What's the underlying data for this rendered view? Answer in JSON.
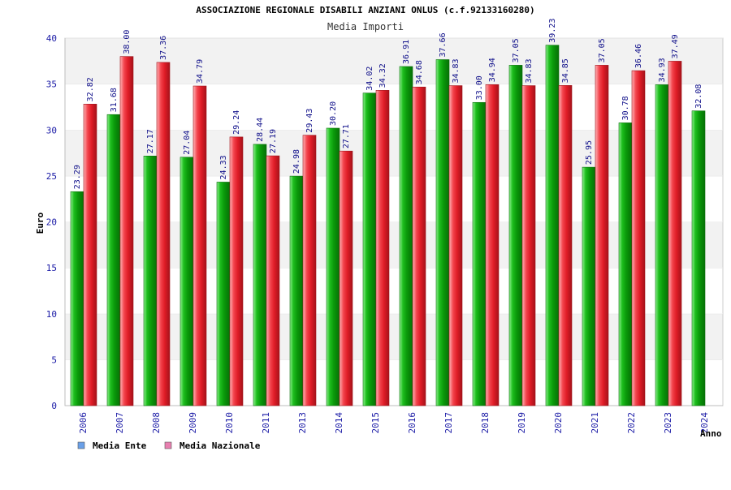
{
  "chart_data": {
    "type": "bar",
    "title": "ASSOCIAZIONE REGIONALE DISABILI ANZIANI ONLUS (c.f.92133160280)",
    "subtitle": "Media Importi",
    "ylabel": "Euro",
    "xlabel": "Anno",
    "ylim": [
      0,
      40
    ],
    "yticks": [
      0,
      5,
      10,
      15,
      20,
      25,
      30,
      35,
      40
    ],
    "grid": "horizontal-bands",
    "legend_position": "bottom-left",
    "categories": [
      "2006",
      "2007",
      "2008",
      "2009",
      "2010",
      "2011",
      "2013",
      "2014",
      "2015",
      "2016",
      "2017",
      "2018",
      "2019",
      "2020",
      "2021",
      "2022",
      "2023",
      "2024"
    ],
    "series": [
      {
        "name": "Media Ente",
        "legend_color": "#6aa0e8",
        "bar_color": "#13a813",
        "values": [
          23.29,
          31.68,
          27.17,
          27.04,
          24.33,
          28.44,
          24.98,
          30.2,
          34.02,
          36.91,
          37.66,
          33.0,
          37.05,
          39.23,
          25.95,
          30.78,
          34.93,
          32.08
        ]
      },
      {
        "name": "Media Nazionale",
        "legend_color": "#e87fb0",
        "bar_color": "#e6242e",
        "values": [
          32.82,
          38.0,
          37.36,
          34.79,
          29.24,
          27.19,
          29.43,
          27.71,
          34.32,
          34.68,
          34.83,
          34.94,
          34.83,
          34.85,
          37.05,
          36.46,
          37.49,
          null
        ]
      }
    ],
    "value_labels": {
      "Media Ente": [
        "23.29",
        "31.68",
        "27.17",
        "27.04",
        "24.33",
        "28.44",
        "24.98",
        "30.20",
        "34.02",
        "36.91",
        "37.66",
        "33.00",
        "37.05",
        "39.23",
        "25.95",
        "30.78",
        "34.93",
        "32.08"
      ],
      "Media Nazionale": [
        "32.82",
        "38.00",
        "37.36",
        "34.79",
        "29.24",
        "27.19",
        "29.43",
        "27.71",
        "34.32",
        "34.68",
        "34.83",
        "34.94",
        "34.83",
        "34.85",
        "37.05",
        "36.46",
        "37.49",
        null
      ]
    }
  }
}
